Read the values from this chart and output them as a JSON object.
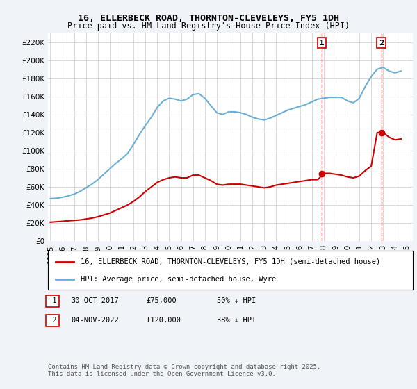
{
  "title": "16, ELLERBECK ROAD, THORNTON-CLEVELEYS, FY5 1DH",
  "subtitle": "Price paid vs. HM Land Registry's House Price Index (HPI)",
  "hpi_color": "#6baed6",
  "price_color": "#cc0000",
  "background_color": "#f0f4f8",
  "plot_bg_color": "#ffffff",
  "ylim": [
    0,
    230000
  ],
  "yticks": [
    0,
    20000,
    40000,
    60000,
    80000,
    100000,
    120000,
    140000,
    160000,
    180000,
    200000,
    220000
  ],
  "ytick_labels": [
    "£0",
    "£20K",
    "£40K",
    "£60K",
    "£80K",
    "£100K",
    "£120K",
    "£140K",
    "£160K",
    "£180K",
    "£200K",
    "£220K"
  ],
  "legend_label_price": "16, ELLERBECK ROAD, THORNTON-CLEVELEYS, FY5 1DH (semi-detached house)",
  "legend_label_hpi": "HPI: Average price, semi-detached house, Wyre",
  "note1_num": "1",
  "note1_date": "30-OCT-2017",
  "note1_price": "£75,000",
  "note1_pct": "50% ↓ HPI",
  "note2_num": "2",
  "note2_date": "04-NOV-2022",
  "note2_price": "£120,000",
  "note2_pct": "38% ↓ HPI",
  "copyright": "Contains HM Land Registry data © Crown copyright and database right 2025.\nThis data is licensed under the Open Government Licence v3.0.",
  "sale1_x": 2017.83,
  "sale1_y": 75000,
  "sale2_x": 2022.84,
  "sale2_y": 120000,
  "hpi_x": [
    1995.0,
    1995.5,
    1996.0,
    1996.5,
    1997.0,
    1997.5,
    1998.0,
    1998.5,
    1999.0,
    1999.5,
    2000.0,
    2000.5,
    2001.0,
    2001.5,
    2002.0,
    2002.5,
    2003.0,
    2003.5,
    2004.0,
    2004.5,
    2005.0,
    2005.5,
    2006.0,
    2006.5,
    2007.0,
    2007.5,
    2008.0,
    2008.5,
    2009.0,
    2009.5,
    2010.0,
    2010.5,
    2011.0,
    2011.5,
    2012.0,
    2012.5,
    2013.0,
    2013.5,
    2014.0,
    2014.5,
    2015.0,
    2015.5,
    2016.0,
    2016.5,
    2017.0,
    2017.5,
    2018.0,
    2018.5,
    2019.0,
    2019.5,
    2020.0,
    2020.5,
    2021.0,
    2021.5,
    2022.0,
    2022.5,
    2023.0,
    2023.5,
    2024.0,
    2024.5
  ],
  "hpi_y": [
    47000,
    47500,
    48500,
    50000,
    52000,
    55000,
    59000,
    63000,
    68000,
    74000,
    80000,
    86000,
    91000,
    97000,
    107000,
    118000,
    128000,
    137000,
    148000,
    155000,
    158000,
    157000,
    155000,
    157000,
    162000,
    163000,
    158000,
    150000,
    142000,
    140000,
    143000,
    143000,
    142000,
    140000,
    137000,
    135000,
    134000,
    136000,
    139000,
    142000,
    145000,
    147000,
    149000,
    151000,
    154000,
    157000,
    158000,
    159000,
    159000,
    159000,
    155000,
    153000,
    158000,
    171000,
    182000,
    190000,
    192000,
    188000,
    186000,
    188000
  ],
  "price_x": [
    1995.0,
    1995.5,
    1996.0,
    1996.5,
    1997.0,
    1997.5,
    1998.0,
    1998.5,
    1999.0,
    1999.5,
    2000.0,
    2000.5,
    2001.0,
    2001.5,
    2002.0,
    2002.5,
    2003.0,
    2003.5,
    2004.0,
    2004.5,
    2005.0,
    2005.5,
    2006.0,
    2006.5,
    2007.0,
    2007.5,
    2008.0,
    2008.5,
    2009.0,
    2009.5,
    2010.0,
    2010.5,
    2011.0,
    2011.5,
    2012.0,
    2012.5,
    2013.0,
    2013.5,
    2014.0,
    2014.5,
    2015.0,
    2015.5,
    2016.0,
    2016.5,
    2017.0,
    2017.5,
    2018.0,
    2018.5,
    2019.0,
    2019.5,
    2020.0,
    2020.5,
    2021.0,
    2021.5,
    2022.0,
    2022.5,
    2023.0,
    2023.5,
    2024.0,
    2024.5
  ],
  "price_y": [
    21000,
    21500,
    22000,
    22500,
    23000,
    23500,
    24500,
    25500,
    27000,
    29000,
    31000,
    34000,
    37000,
    40000,
    44000,
    49000,
    55000,
    60000,
    65000,
    68000,
    70000,
    71000,
    70000,
    70000,
    73000,
    73000,
    70000,
    67000,
    63000,
    62000,
    63000,
    63000,
    63000,
    62000,
    61000,
    60000,
    59000,
    60000,
    62000,
    63000,
    64000,
    65000,
    66000,
    67000,
    68000,
    68000,
    75000,
    75000,
    74000,
    73000,
    71000,
    70000,
    72000,
    78000,
    83000,
    120000,
    120000,
    115000,
    112000,
    113000
  ],
  "xticks": [
    1995,
    1996,
    1997,
    1998,
    1999,
    2000,
    2001,
    2002,
    2003,
    2004,
    2005,
    2006,
    2007,
    2008,
    2009,
    2010,
    2011,
    2012,
    2013,
    2014,
    2015,
    2016,
    2017,
    2018,
    2019,
    2020,
    2021,
    2022,
    2023,
    2024,
    2025
  ],
  "vline1_x": 2017.83,
  "vline2_x": 2022.84,
  "xlim": [
    1994.8,
    2025.5
  ]
}
